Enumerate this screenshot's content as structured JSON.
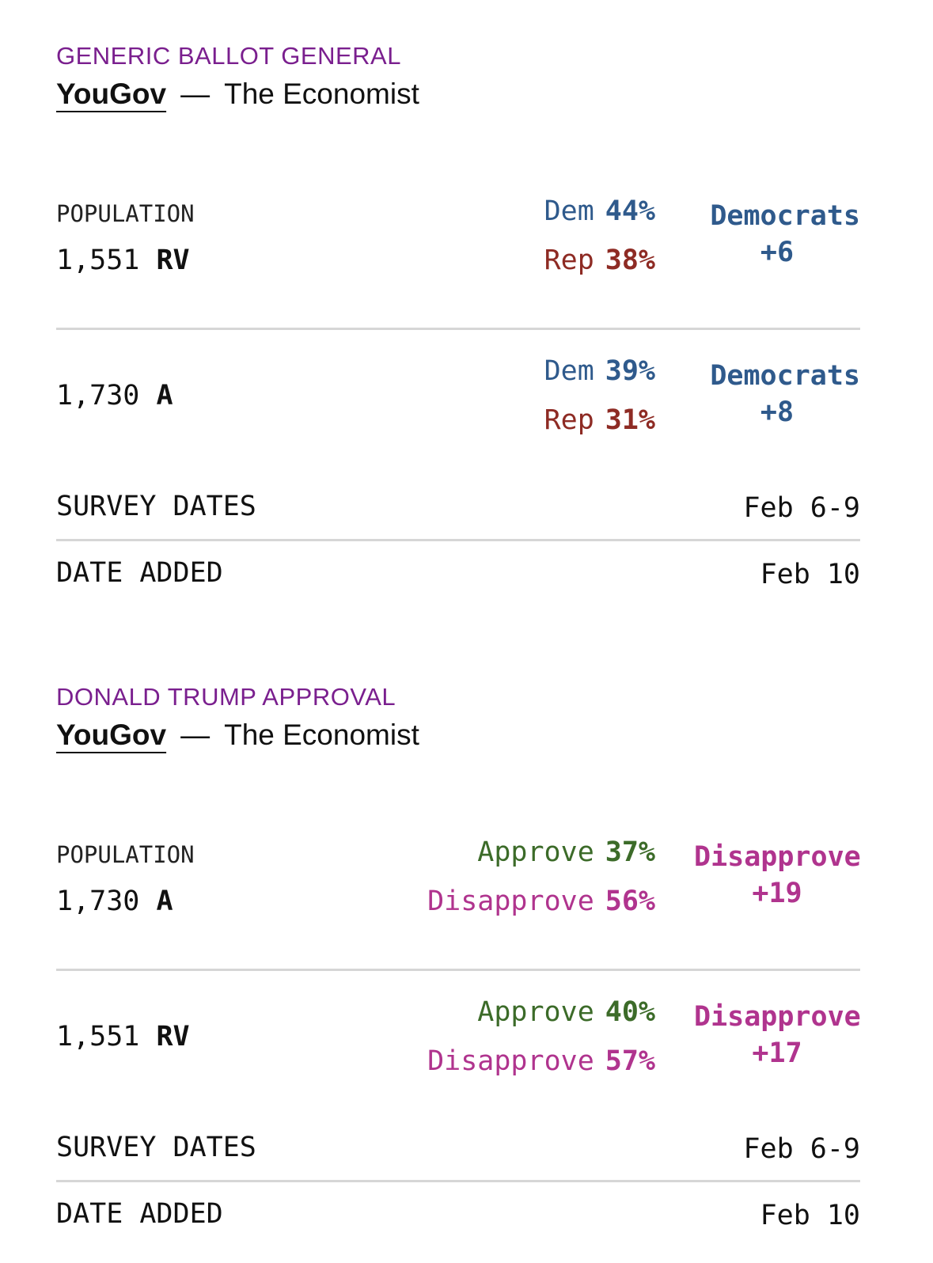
{
  "cards": [
    {
      "category": "GENERIC BALLOT GENERAL",
      "pollster": "YouGov",
      "separator": "—",
      "sponsor": "The Economist",
      "population_label": "POPULATION",
      "rows": [
        {
          "sample_size": "1,551",
          "population": "RV",
          "answers": [
            {
              "label": "Dem",
              "pct": "44%"
            },
            {
              "label": "Rep",
              "pct": "38%"
            }
          ],
          "net_label": "Democrats",
          "net_value": "+6"
        },
        {
          "sample_size": "1,730",
          "population": "A",
          "answers": [
            {
              "label": "Dem",
              "pct": "39%"
            },
            {
              "label": "Rep",
              "pct": "31%"
            }
          ],
          "net_label": "Democrats",
          "net_value": "+8"
        }
      ],
      "survey_dates_label": "SURVEY DATES",
      "survey_dates": "Feb 6-9",
      "date_added_label": "DATE ADDED",
      "date_added": "Feb 10"
    },
    {
      "category": "DONALD TRUMP APPROVAL",
      "pollster": "YouGov",
      "separator": "—",
      "sponsor": "The Economist",
      "population_label": "POPULATION",
      "rows": [
        {
          "sample_size": "1,730",
          "population": "A",
          "answers": [
            {
              "label": "Approve",
              "pct": "37%"
            },
            {
              "label": "Disapprove",
              "pct": "56%"
            }
          ],
          "net_label": "Disapprove",
          "net_value": "+19"
        },
        {
          "sample_size": "1,551",
          "population": "RV",
          "answers": [
            {
              "label": "Approve",
              "pct": "40%"
            },
            {
              "label": "Disapprove",
              "pct": "57%"
            }
          ],
          "net_label": "Disapprove",
          "net_value": "+17"
        }
      ],
      "survey_dates_label": "SURVEY DATES",
      "survey_dates": "Feb 6-9",
      "date_added_label": "DATE ADDED",
      "date_added": "Feb 10"
    }
  ],
  "colors": {
    "category": "#7a1f8e",
    "dem": "#2f5a8c",
    "rep": "#8e2b24",
    "approve": "#3c6b29",
    "disapprove": "#b0348e",
    "divider": "#d6d6d6"
  }
}
